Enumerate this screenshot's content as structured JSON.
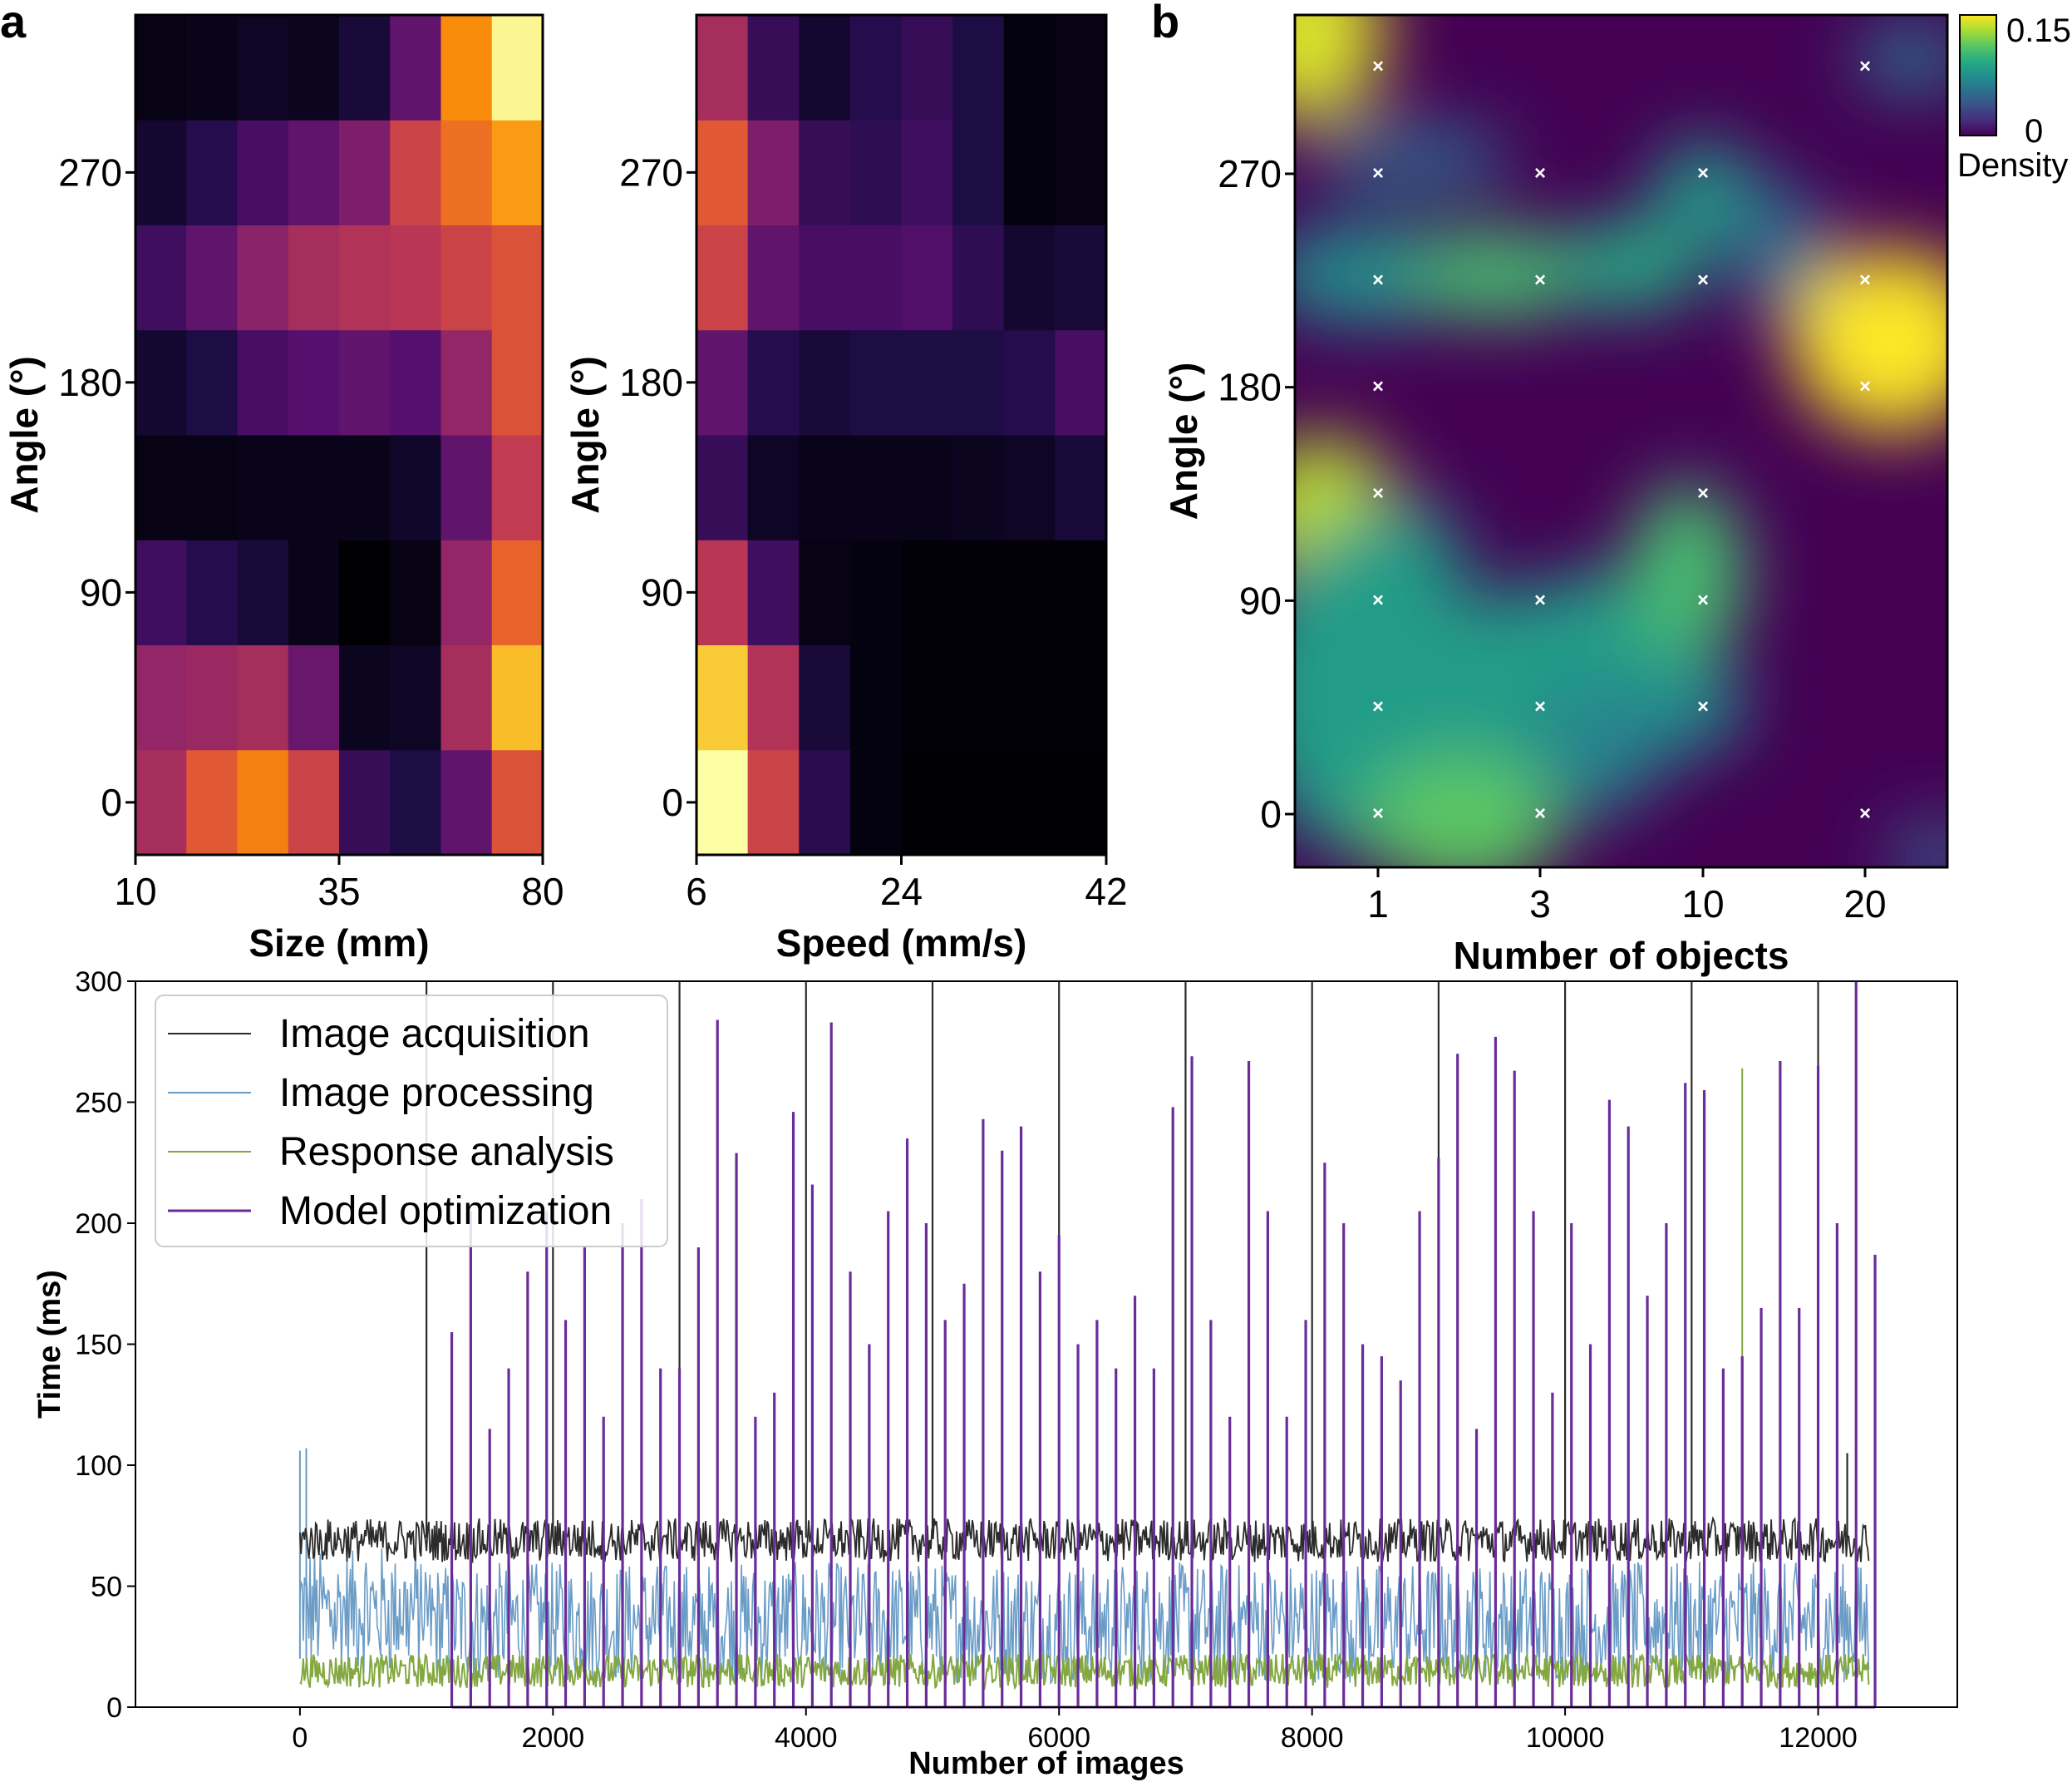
{
  "panels": {
    "a": "a",
    "b": "b"
  },
  "colors": {
    "image_acquisition": "#2b2b2b",
    "image_processing": "#6a9cc6",
    "response_analysis": "#83a83f",
    "model_optimization": "#6a2c9a",
    "cross_marker": "#ffffff"
  },
  "chart_data": [
    {
      "type": "heatmap",
      "panel": "a",
      "title": "",
      "xlabel": "Size (mm)",
      "ylabel": "Angle (°)",
      "xticks": [
        "10",
        "35",
        "80"
      ],
      "yticks": [
        "0",
        "90",
        "180",
        "270"
      ],
      "colormap": "inferno",
      "rows_bottom_to_top_angle": [
        0,
        45,
        90,
        135,
        180,
        225,
        270,
        315
      ],
      "values": [
        [
          0.45,
          0.62,
          0.72,
          0.55,
          0.18,
          0.12,
          0.28,
          0.6
        ],
        [
          0.4,
          0.42,
          0.45,
          0.3,
          0.05,
          0.06,
          0.45,
          0.85
        ],
        [
          0.2,
          0.14,
          0.1,
          0.04,
          0.0,
          0.03,
          0.4,
          0.65
        ],
        [
          0.03,
          0.03,
          0.04,
          0.04,
          0.04,
          0.07,
          0.28,
          0.52
        ],
        [
          0.08,
          0.12,
          0.22,
          0.25,
          0.28,
          0.25,
          0.4,
          0.6
        ],
        [
          0.2,
          0.28,
          0.38,
          0.45,
          0.48,
          0.5,
          0.55,
          0.6
        ],
        [
          0.08,
          0.14,
          0.22,
          0.28,
          0.35,
          0.55,
          0.68,
          0.78
        ],
        [
          0.03,
          0.04,
          0.06,
          0.05,
          0.1,
          0.28,
          0.75,
          0.98
        ]
      ]
    },
    {
      "type": "heatmap",
      "panel": "a",
      "title": "",
      "xlabel": "Speed (mm/s)",
      "ylabel": "Angle (°)",
      "xticks": [
        "6",
        "24",
        "42"
      ],
      "yticks": [
        "0",
        "90",
        "180",
        "270"
      ],
      "colormap": "inferno",
      "rows_bottom_to_top_angle": [
        0,
        45,
        90,
        135,
        180,
        225,
        270,
        315
      ],
      "values": [
        [
          1.0,
          0.55,
          0.15,
          0.02,
          0.0,
          0.0,
          0.0,
          0.0
        ],
        [
          0.88,
          0.48,
          0.1,
          0.02,
          0.01,
          0.01,
          0.01,
          0.01
        ],
        [
          0.5,
          0.2,
          0.03,
          0.02,
          0.01,
          0.01,
          0.01,
          0.01
        ],
        [
          0.18,
          0.06,
          0.04,
          0.04,
          0.04,
          0.05,
          0.06,
          0.1
        ],
        [
          0.28,
          0.14,
          0.1,
          0.12,
          0.12,
          0.12,
          0.14,
          0.22
        ],
        [
          0.55,
          0.28,
          0.22,
          0.22,
          0.24,
          0.16,
          0.08,
          0.1
        ],
        [
          0.62,
          0.35,
          0.18,
          0.16,
          0.2,
          0.12,
          0.02,
          0.03
        ],
        [
          0.45,
          0.18,
          0.08,
          0.14,
          0.18,
          0.12,
          0.02,
          0.03
        ]
      ]
    },
    {
      "type": "heatmap",
      "panel": "b",
      "title": "",
      "xlabel": "Number of objects",
      "ylabel": "Angle (°)",
      "xticks": [
        "1",
        "3",
        "10",
        "20"
      ],
      "yticks": [
        "0",
        "90",
        "180",
        "270"
      ],
      "colormap": "viridis",
      "colorbar": {
        "label": "Density",
        "min_label": "0",
        "max_label": "0.15",
        "range": [
          0,
          0.15
        ]
      },
      "sample_points": [
        {
          "objects": 1,
          "angle": 0
        },
        {
          "objects": 1,
          "angle": 45
        },
        {
          "objects": 1,
          "angle": 90
        },
        {
          "objects": 1,
          "angle": 135
        },
        {
          "objects": 1,
          "angle": 180
        },
        {
          "objects": 1,
          "angle": 225
        },
        {
          "objects": 1,
          "angle": 270
        },
        {
          "objects": 1,
          "angle": 315
        },
        {
          "objects": 3,
          "angle": 0
        },
        {
          "objects": 3,
          "angle": 45
        },
        {
          "objects": 3,
          "angle": 90
        },
        {
          "objects": 3,
          "angle": 225
        },
        {
          "objects": 3,
          "angle": 270
        },
        {
          "objects": 10,
          "angle": 45
        },
        {
          "objects": 10,
          "angle": 90
        },
        {
          "objects": 10,
          "angle": 135
        },
        {
          "objects": 10,
          "angle": 225
        },
        {
          "objects": 10,
          "angle": 270
        },
        {
          "objects": 20,
          "angle": 0
        },
        {
          "objects": 20,
          "angle": 180
        },
        {
          "objects": 20,
          "angle": 225
        },
        {
          "objects": 20,
          "angle": 315
        }
      ]
    },
    {
      "type": "line",
      "panel": "bottom",
      "title": "",
      "xlabel": "Number of images",
      "ylabel": "Time (ms)",
      "xlim": [
        -1300,
        13100
      ],
      "ylim": [
        0,
        300
      ],
      "xticks": [
        "0",
        "2000",
        "4000",
        "6000",
        "8000",
        "10000",
        "12000"
      ],
      "yticks": [
        "0",
        "50",
        "100",
        "150",
        "200",
        "250",
        "300"
      ],
      "legend": {
        "placement": "top-left",
        "entries": [
          "Image acquisition",
          "Image processing",
          "Response analysis",
          "Model optimization"
        ]
      },
      "series": [
        {
          "name": "Image acquisition",
          "x_range": [
            0,
            12400
          ],
          "typical_value": 68,
          "fluctuation": [
            60,
            78
          ],
          "spikes": [
            {
              "x": 1000,
              "y": 300
            },
            {
              "x": 2000,
              "y": 300
            },
            {
              "x": 3000,
              "y": 300
            },
            {
              "x": 4000,
              "y": 300
            },
            {
              "x": 5000,
              "y": 300
            },
            {
              "x": 6000,
              "y": 300
            },
            {
              "x": 7000,
              "y": 300
            },
            {
              "x": 8000,
              "y": 300
            },
            {
              "x": 9000,
              "y": 300
            },
            {
              "x": 10000,
              "y": 300
            },
            {
              "x": 11000,
              "y": 300
            },
            {
              "x": 12000,
              "y": 300
            },
            {
              "x": 12230,
              "y": 105
            }
          ]
        },
        {
          "name": "Image processing",
          "x_range": [
            0,
            12400
          ],
          "typical_range": [
            10,
            60
          ],
          "peaks": [
            {
              "x": 0,
              "y": 106
            },
            {
              "x": 50,
              "y": 107
            }
          ]
        },
        {
          "name": "Response analysis",
          "x_range": [
            0,
            12400
          ],
          "typical_range": [
            5,
            28
          ],
          "peaks": [
            {
              "x": 11400,
              "y": 264
            }
          ]
        },
        {
          "name": "Model optimization",
          "baseline": 0,
          "spikes": [
            {
              "x": 1200,
              "y": 155
            },
            {
              "x": 1350,
              "y": 205
            },
            {
              "x": 1500,
              "y": 115
            },
            {
              "x": 1650,
              "y": 140
            },
            {
              "x": 1800,
              "y": 180
            },
            {
              "x": 1950,
              "y": 205
            },
            {
              "x": 2100,
              "y": 160
            },
            {
              "x": 2250,
              "y": 190
            },
            {
              "x": 2400,
              "y": 120
            },
            {
              "x": 2550,
              "y": 200
            },
            {
              "x": 2700,
              "y": 210
            },
            {
              "x": 2850,
              "y": 140
            },
            {
              "x": 3000,
              "y": 140
            },
            {
              "x": 3150,
              "y": 190
            },
            {
              "x": 3300,
              "y": 284
            },
            {
              "x": 3450,
              "y": 229
            },
            {
              "x": 3600,
              "y": 120
            },
            {
              "x": 3750,
              "y": 130
            },
            {
              "x": 3900,
              "y": 246
            },
            {
              "x": 4050,
              "y": 216
            },
            {
              "x": 4200,
              "y": 283
            },
            {
              "x": 4350,
              "y": 180
            },
            {
              "x": 4500,
              "y": 150
            },
            {
              "x": 4650,
              "y": 205
            },
            {
              "x": 4800,
              "y": 235
            },
            {
              "x": 4950,
              "y": 200
            },
            {
              "x": 5100,
              "y": 160
            },
            {
              "x": 5250,
              "y": 175
            },
            {
              "x": 5400,
              "y": 243
            },
            {
              "x": 5550,
              "y": 230
            },
            {
              "x": 5700,
              "y": 240
            },
            {
              "x": 5850,
              "y": 180
            },
            {
              "x": 6000,
              "y": 195
            },
            {
              "x": 6150,
              "y": 150
            },
            {
              "x": 6300,
              "y": 160
            },
            {
              "x": 6450,
              "y": 140
            },
            {
              "x": 6600,
              "y": 170
            },
            {
              "x": 6750,
              "y": 140
            },
            {
              "x": 6900,
              "y": 248
            },
            {
              "x": 7050,
              "y": 269
            },
            {
              "x": 7200,
              "y": 160
            },
            {
              "x": 7350,
              "y": 120
            },
            {
              "x": 7500,
              "y": 267
            },
            {
              "x": 7650,
              "y": 205
            },
            {
              "x": 7800,
              "y": 120
            },
            {
              "x": 7950,
              "y": 160
            },
            {
              "x": 8100,
              "y": 225
            },
            {
              "x": 8250,
              "y": 200
            },
            {
              "x": 8400,
              "y": 150
            },
            {
              "x": 8550,
              "y": 145
            },
            {
              "x": 8700,
              "y": 135
            },
            {
              "x": 8850,
              "y": 205
            },
            {
              "x": 9000,
              "y": 227
            },
            {
              "x": 9150,
              "y": 270
            },
            {
              "x": 9300,
              "y": 115
            },
            {
              "x": 9450,
              "y": 277
            },
            {
              "x": 9600,
              "y": 263
            },
            {
              "x": 9750,
              "y": 205
            },
            {
              "x": 9900,
              "y": 130
            },
            {
              "x": 10050,
              "y": 200
            },
            {
              "x": 10200,
              "y": 150
            },
            {
              "x": 10350,
              "y": 251
            },
            {
              "x": 10500,
              "y": 240
            },
            {
              "x": 10650,
              "y": 170
            },
            {
              "x": 10800,
              "y": 200
            },
            {
              "x": 10950,
              "y": 258
            },
            {
              "x": 11100,
              "y": 255
            },
            {
              "x": 11250,
              "y": 140
            },
            {
              "x": 11400,
              "y": 145
            },
            {
              "x": 11550,
              "y": 165
            },
            {
              "x": 11700,
              "y": 267
            },
            {
              "x": 11850,
              "y": 165
            },
            {
              "x": 12000,
              "y": 265
            },
            {
              "x": 12150,
              "y": 200
            },
            {
              "x": 12300,
              "y": 300
            },
            {
              "x": 12450,
              "y": 187
            }
          ]
        }
      ]
    }
  ]
}
